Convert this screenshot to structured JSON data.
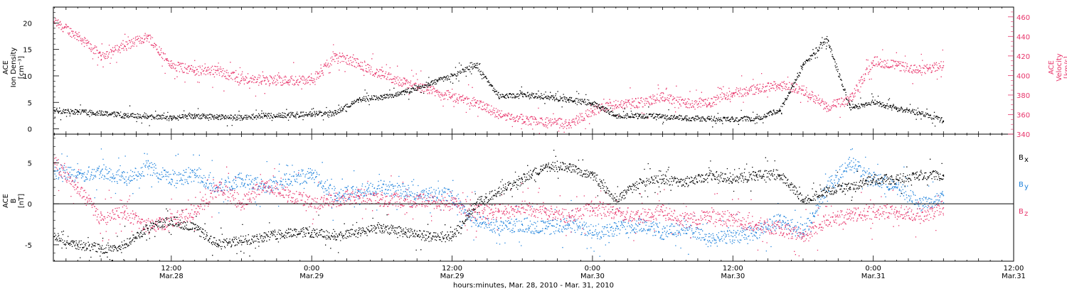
{
  "colors": {
    "black": "#000000",
    "red": "#e8336a",
    "blue": "#1e82dc"
  },
  "xaxis": {
    "caption": "hours:minutes, Mar. 28, 2010 - Mar. 31, 2010",
    "ticks": [
      {
        "time": "12:00",
        "date": "Mar.28"
      },
      {
        "time": "0:00",
        "date": "Mar.29"
      },
      {
        "time": "12:00",
        "date": "Mar.29"
      },
      {
        "time": "0:00",
        "date": "Mar.30"
      },
      {
        "time": "12:00",
        "date": "Mar.30"
      },
      {
        "time": "0:00",
        "date": "Mar.31"
      },
      {
        "time": "12:00",
        "date": "Mar.31"
      }
    ]
  },
  "panel1": {
    "ylabel_left": [
      "ACE",
      "Ion Density",
      "[cm⁻³]"
    ],
    "ylabel_right": [
      "ACE",
      "Velocity",
      "[km/s]"
    ],
    "left_ticks": [
      "0",
      "5",
      "10",
      "15",
      "20"
    ],
    "right_ticks": [
      "340",
      "360",
      "380",
      "400",
      "420",
      "440",
      "460"
    ]
  },
  "panel2": {
    "ylabel_left": [
      "ACE",
      "B",
      "[nT]"
    ],
    "left_ticks": [
      "-5",
      "0",
      "5"
    ],
    "legend": [
      {
        "label": "B",
        "sub": "x",
        "color": "black"
      },
      {
        "label": "B",
        "sub": "y",
        "color": "blue"
      },
      {
        "label": "B",
        "sub": "z",
        "color": "red"
      }
    ]
  },
  "chart_data": [
    {
      "type": "scatter",
      "title": "",
      "xlabel": "hours:minutes, Mar. 28, 2010 - Mar. 31, 2010",
      "x_range": [
        "2010-03-28 01:55",
        "2010-03-31 12:00"
      ],
      "ylabel": "ACE Ion Density [cm^-3]",
      "ylim": [
        -1,
        23
      ],
      "y2label": "ACE Velocity [km/s]",
      "y2lim": [
        340,
        470
      ],
      "series": [
        {
          "name": "ACE Ion Density",
          "color": "black",
          "axis": "left",
          "x": [
            "2010-03-28 02:00",
            "2010-03-28 04:00",
            "2010-03-28 06:00",
            "2010-03-28 08:00",
            "2010-03-28 10:00",
            "2010-03-28 12:00",
            "2010-03-28 14:00",
            "2010-03-28 16:00",
            "2010-03-28 18:00",
            "2010-03-28 20:00",
            "2010-03-28 22:00",
            "2010-03-29 00:00",
            "2010-03-29 02:00",
            "2010-03-29 04:00",
            "2010-03-29 06:00",
            "2010-03-29 08:00",
            "2010-03-29 10:00",
            "2010-03-29 12:00",
            "2010-03-29 14:00",
            "2010-03-29 16:00",
            "2010-03-29 18:00",
            "2010-03-29 20:00",
            "2010-03-29 22:00",
            "2010-03-30 00:00",
            "2010-03-30 02:00",
            "2010-03-30 04:00",
            "2010-03-30 06:00",
            "2010-03-30 08:00",
            "2010-03-30 10:00",
            "2010-03-30 12:00",
            "2010-03-30 14:00",
            "2010-03-30 16:00",
            "2010-03-30 18:00",
            "2010-03-30 20:00",
            "2010-03-30 22:00",
            "2010-03-31 00:00",
            "2010-03-31 02:00",
            "2010-03-31 04:00",
            "2010-03-31 06:00"
          ],
          "values": [
            3.5,
            3.2,
            3.0,
            2.5,
            2.3,
            2.0,
            2.4,
            2.2,
            2.1,
            2.5,
            2.6,
            2.8,
            3.0,
            5.5,
            6.0,
            7.0,
            8.5,
            10.0,
            12.0,
            6.0,
            6.5,
            6.0,
            5.5,
            4.8,
            2.5,
            2.4,
            2.3,
            2.0,
            1.9,
            1.8,
            2.0,
            3.5,
            12.0,
            17.0,
            4.0,
            5.0,
            3.8,
            3.0,
            1.5
          ]
        },
        {
          "name": "ACE Velocity",
          "color": "red",
          "axis": "right",
          "x": [
            "2010-03-28 02:00",
            "2010-03-28 04:00",
            "2010-03-28 06:00",
            "2010-03-28 08:00",
            "2010-03-28 10:00",
            "2010-03-28 12:00",
            "2010-03-28 14:00",
            "2010-03-28 16:00",
            "2010-03-28 18:00",
            "2010-03-28 20:00",
            "2010-03-28 22:00",
            "2010-03-29 00:00",
            "2010-03-29 02:00",
            "2010-03-29 04:00",
            "2010-03-29 06:00",
            "2010-03-29 08:00",
            "2010-03-29 10:00",
            "2010-03-29 12:00",
            "2010-03-29 14:00",
            "2010-03-29 16:00",
            "2010-03-29 18:00",
            "2010-03-29 20:00",
            "2010-03-29 22:00",
            "2010-03-30 00:00",
            "2010-03-30 02:00",
            "2010-03-30 04:00",
            "2010-03-30 06:00",
            "2010-03-30 08:00",
            "2010-03-30 10:00",
            "2010-03-30 12:00",
            "2010-03-30 14:00",
            "2010-03-30 16:00",
            "2010-03-30 18:00",
            "2010-03-30 20:00",
            "2010-03-30 22:00",
            "2010-03-31 00:00",
            "2010-03-31 02:00",
            "2010-03-31 04:00",
            "2010-03-31 06:00"
          ],
          "values": [
            455,
            440,
            420,
            430,
            440,
            410,
            405,
            405,
            395,
            395,
            395,
            395,
            420,
            412,
            400,
            392,
            385,
            378,
            372,
            360,
            355,
            352,
            350,
            364,
            370,
            372,
            378,
            372,
            372,
            382,
            386,
            390,
            385,
            368,
            375,
            415,
            410,
            405,
            410
          ]
        }
      ]
    },
    {
      "type": "scatter",
      "title": "",
      "xlabel": "hours:minutes, Mar. 28, 2010 - Mar. 31, 2010",
      "x_range": [
        "2010-03-28 01:55",
        "2010-03-31 12:00"
      ],
      "ylabel": "ACE B [nT]",
      "ylim": [
        -7,
        8.5
      ],
      "zero_line": true,
      "series": [
        {
          "name": "Bx",
          "color": "black",
          "x": [
            "2010-03-28 02:00",
            "2010-03-28 04:00",
            "2010-03-28 06:00",
            "2010-03-28 08:00",
            "2010-03-28 10:00",
            "2010-03-28 12:00",
            "2010-03-28 14:00",
            "2010-03-28 16:00",
            "2010-03-28 18:00",
            "2010-03-28 20:00",
            "2010-03-28 22:00",
            "2010-03-29 00:00",
            "2010-03-29 02:00",
            "2010-03-29 04:00",
            "2010-03-29 06:00",
            "2010-03-29 08:00",
            "2010-03-29 10:00",
            "2010-03-29 12:00",
            "2010-03-29 14:00",
            "2010-03-29 16:00",
            "2010-03-29 18:00",
            "2010-03-29 20:00",
            "2010-03-29 22:00",
            "2010-03-30 00:00",
            "2010-03-30 02:00",
            "2010-03-30 04:00",
            "2010-03-30 06:00",
            "2010-03-30 08:00",
            "2010-03-30 10:00",
            "2010-03-30 12:00",
            "2010-03-30 14:00",
            "2010-03-30 16:00",
            "2010-03-30 18:00",
            "2010-03-30 20:00",
            "2010-03-30 22:00",
            "2010-03-31 00:00",
            "2010-03-31 02:00",
            "2010-03-31 04:00",
            "2010-03-31 06:00"
          ],
          "values": [
            -4,
            -5,
            -5.5,
            -5,
            -3,
            -2,
            -3,
            -5,
            -4.5,
            -4,
            -3.5,
            -3.5,
            -4,
            -3.5,
            -3,
            -3.5,
            -4,
            -4,
            0,
            1.5,
            3,
            4.5,
            4.5,
            3.5,
            0.5,
            2.5,
            3,
            2.5,
            3.5,
            3,
            3.5,
            3.5,
            0.5,
            1.5,
            2,
            3,
            3,
            3.5,
            3.5
          ]
        },
        {
          "name": "By",
          "color": "blue",
          "x": [
            "2010-03-28 02:00",
            "2010-03-28 04:00",
            "2010-03-28 06:00",
            "2010-03-28 08:00",
            "2010-03-28 10:00",
            "2010-03-28 12:00",
            "2010-03-28 14:00",
            "2010-03-28 16:00",
            "2010-03-28 18:00",
            "2010-03-28 20:00",
            "2010-03-28 22:00",
            "2010-03-29 00:00",
            "2010-03-29 02:00",
            "2010-03-29 04:00",
            "2010-03-29 06:00",
            "2010-03-29 08:00",
            "2010-03-29 10:00",
            "2010-03-29 12:00",
            "2010-03-29 14:00",
            "2010-03-29 16:00",
            "2010-03-29 18:00",
            "2010-03-29 20:00",
            "2010-03-29 22:00",
            "2010-03-30 00:00",
            "2010-03-30 02:00",
            "2010-03-30 04:00",
            "2010-03-30 06:00",
            "2010-03-30 08:00",
            "2010-03-30 10:00",
            "2010-03-30 12:00",
            "2010-03-30 14:00",
            "2010-03-30 16:00",
            "2010-03-30 18:00",
            "2010-03-30 20:00",
            "2010-03-30 22:00",
            "2010-03-31 00:00",
            "2010-03-31 02:00",
            "2010-03-31 04:00",
            "2010-03-31 06:00"
          ],
          "values": [
            4,
            3.5,
            4,
            3,
            4.5,
            3,
            3.5,
            2,
            3,
            2,
            3,
            3.5,
            1,
            1.5,
            2,
            1.5,
            1.2,
            1,
            -2,
            -3,
            -2.5,
            -3,
            -2.5,
            -3.5,
            -3,
            -2.5,
            -3.5,
            -3,
            -4.5,
            -4,
            -3.5,
            -2,
            -3.5,
            2,
            5,
            3,
            2,
            0,
            1
          ]
        },
        {
          "name": "Bz",
          "color": "red",
          "x": [
            "2010-03-28 02:00",
            "2010-03-28 04:00",
            "2010-03-28 06:00",
            "2010-03-28 08:00",
            "2010-03-28 10:00",
            "2010-03-28 12:00",
            "2010-03-28 14:00",
            "2010-03-28 16:00",
            "2010-03-28 18:00",
            "2010-03-28 20:00",
            "2010-03-28 22:00",
            "2010-03-29 00:00",
            "2010-03-29 02:00",
            "2010-03-29 04:00",
            "2010-03-29 06:00",
            "2010-03-29 08:00",
            "2010-03-29 10:00",
            "2010-03-29 12:00",
            "2010-03-29 14:00",
            "2010-03-29 16:00",
            "2010-03-29 18:00",
            "2010-03-29 20:00",
            "2010-03-29 22:00",
            "2010-03-30 00:00",
            "2010-03-30 02:00",
            "2010-03-30 04:00",
            "2010-03-30 06:00",
            "2010-03-30 08:00",
            "2010-03-30 10:00",
            "2010-03-30 12:00",
            "2010-03-30 14:00",
            "2010-03-30 16:00",
            "2010-03-30 18:00",
            "2010-03-30 20:00",
            "2010-03-30 22:00",
            "2010-03-31 00:00",
            "2010-03-31 02:00",
            "2010-03-31 04:00",
            "2010-03-31 06:00"
          ],
          "values": [
            5,
            2,
            -2,
            -1,
            -3,
            -2,
            -1,
            2,
            0,
            2.5,
            1,
            0,
            0.5,
            1,
            0.5,
            0.5,
            0.3,
            0,
            -1,
            -1,
            -0.5,
            -1,
            -1.5,
            -0.5,
            -1,
            -1.5,
            -1,
            -2,
            -1.5,
            -2,
            -2.5,
            -3,
            -4,
            -2,
            -1.5,
            -1,
            -1,
            -1.5,
            -0.5
          ]
        }
      ]
    }
  ]
}
